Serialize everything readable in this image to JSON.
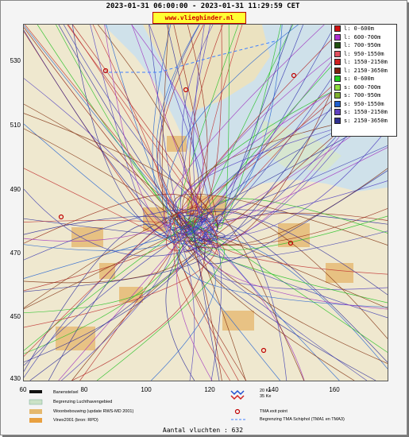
{
  "header": {
    "title": "2023-01-31 06:00:00 - 2023-01-31 11:29:59 CET",
    "url": "www.vlieghinder.nl"
  },
  "axes": {
    "y_ticks": [
      "530",
      "510",
      "490",
      "470",
      "450",
      "430"
    ],
    "x_ticks": [
      "60",
      "80",
      "100",
      "120",
      "140",
      "160"
    ]
  },
  "legend": {
    "items": [
      {
        "label": "l: 0-600m",
        "color": "#d01010"
      },
      {
        "label": "l: 600-700m",
        "color": "#b030d0"
      },
      {
        "label": "l: 700-950m",
        "color": "#205010"
      },
      {
        "label": "l: 950-1550m",
        "color": "#e05060"
      },
      {
        "label": "l: 1550-2150m",
        "color": "#d02020"
      },
      {
        "label": "l: 2150-3650m",
        "color": "#802010"
      },
      {
        "label": "s: 0-600m",
        "color": "#20d020"
      },
      {
        "label": "s: 600-700m",
        "color": "#90e040"
      },
      {
        "label": "s: 700-950m",
        "color": "#80b030"
      },
      {
        "label": "s: 950-1550m",
        "color": "#2060d0"
      },
      {
        "label": "s: 1550-2150m",
        "color": "#6040c0"
      },
      {
        "label": "s: 2150-3650m",
        "color": "#303090"
      }
    ]
  },
  "map_legend": {
    "runway": "Banenstelsel",
    "airport_boundary": "Begrenzing Luchthavengebied",
    "housing": "Woonbebouwing (update RWS-MD 2001)",
    "vinex": "Vinex2001 (bron: RPD)",
    "ke_35": "35 Ke",
    "ke_20": "20 Ke",
    "tma_exit": "TMA exit point",
    "tma_boundary": "Begrenzing TMA Schiphol  (TMA1 en TMA3)"
  },
  "footer": {
    "count": "Aantal vluchten : 632"
  }
}
